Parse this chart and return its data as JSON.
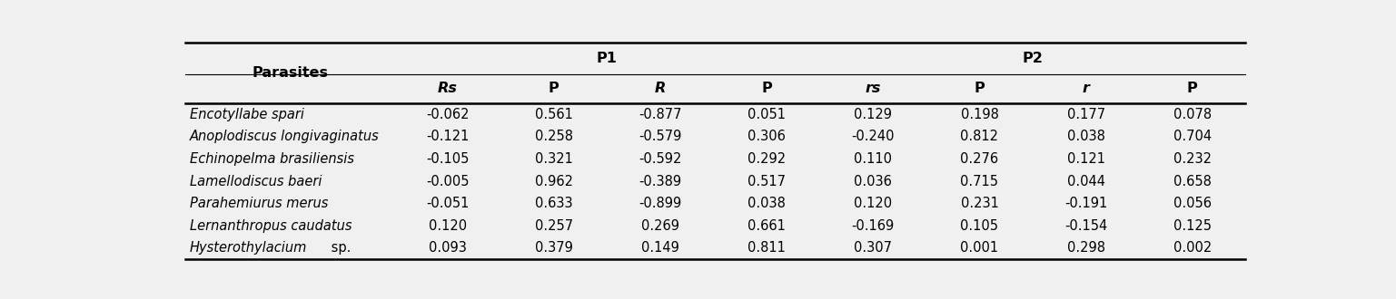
{
  "parasites": [
    "Encotyllabe spari",
    "Anoplodiscus longivaginatus",
    "Echinopelma brasiliensis",
    "Lamellodiscus baeri",
    "Parahemiurus merus",
    "Lernanthropus caudatus",
    "Hysterothylacium sp."
  ],
  "col_headers": [
    "Rs",
    "P",
    "R",
    "P",
    "rs",
    "P",
    "r",
    "P"
  ],
  "col_headers_italic": [
    true,
    false,
    true,
    false,
    true,
    false,
    true,
    false
  ],
  "group_headers": [
    "P1",
    "P2"
  ],
  "data": [
    [
      "-0.062",
      "0.561",
      "-0.877",
      "0.051",
      "0.129",
      "0.198",
      "0.177",
      "0.078"
    ],
    [
      "-0.121",
      "0.258",
      "-0.579",
      "0.306",
      "-0.240",
      "0.812",
      "0.038",
      "0.704"
    ],
    [
      "-0.105",
      "0.321",
      "-0.592",
      "0.292",
      "0.110",
      "0.276",
      "0.121",
      "0.232"
    ],
    [
      "-0.005",
      "0.962",
      "-0.389",
      "0.517",
      "0.036",
      "0.715",
      "0.044",
      "0.658"
    ],
    [
      "-0.051",
      "0.633",
      "-0.899",
      "0.038",
      "0.120",
      "0.231",
      "-0.191",
      "0.056"
    ],
    [
      "0.120",
      "0.257",
      "0.269",
      "0.661",
      "-0.169",
      "0.105",
      "-0.154",
      "0.125"
    ],
    [
      "0.093",
      "0.379",
      "0.149",
      "0.811",
      "0.307",
      "0.001",
      "0.298",
      "0.002"
    ]
  ],
  "bg_color": "#f0f0f0",
  "font_size": 10.5,
  "header_font_size": 11.5
}
